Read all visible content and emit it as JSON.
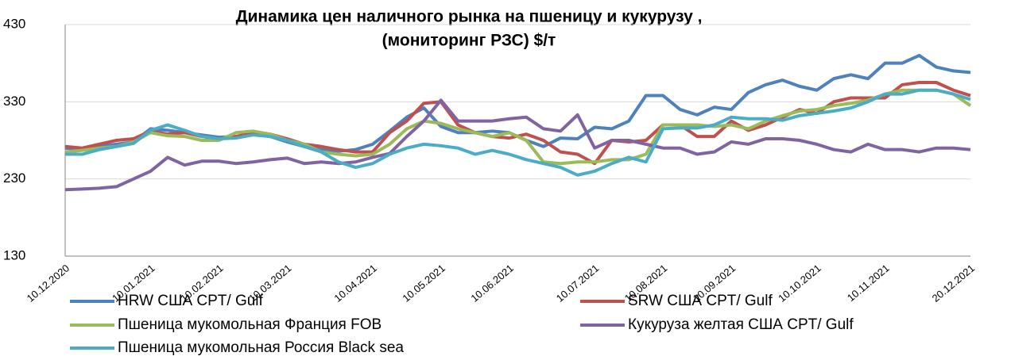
{
  "chart_data": {
    "type": "line",
    "title": [
      "Динамика цен наличного рынка на пшеницу и  кукурузу ,",
      "(мониторинг РЗС) $/т"
    ],
    "categories": [
      "10.12.2020",
      null,
      null,
      null,
      null,
      "10.01.2021",
      null,
      null,
      null,
      "10.02.2021",
      null,
      null,
      null,
      "10.03.2021",
      null,
      null,
      null,
      null,
      "10.04.2021",
      null,
      null,
      null,
      "10.05.2021",
      null,
      null,
      null,
      "10.06.2021",
      null,
      null,
      null,
      null,
      "10.07.2021",
      null,
      null,
      null,
      "10.08.2021",
      null,
      null,
      null,
      "10.09.2021",
      null,
      null,
      null,
      null,
      "10.10.2021",
      null,
      null,
      null,
      "10.11.2021",
      null,
      null,
      null,
      null,
      "20.12.2021"
    ],
    "ylim": [
      130,
      430
    ],
    "yticks": [
      130,
      230,
      330,
      430
    ],
    "grid": true,
    "series": [
      {
        "name": "HRW США CPT/ Gulf",
        "color": "#4f81bd",
        "values": [
          270,
          268,
          272,
          275,
          278,
          295,
          293,
          290,
          287,
          284,
          285,
          288,
          285,
          278,
          272,
          268,
          266,
          268,
          275,
          292,
          310,
          322,
          298,
          290,
          290,
          292,
          290,
          280,
          272,
          283,
          282,
          297,
          295,
          305,
          338,
          338,
          320,
          313,
          323,
          320,
          342,
          352,
          358,
          350,
          345,
          360,
          365,
          360,
          380,
          380,
          390,
          375,
          370,
          368
        ]
      },
      {
        "name": "SRW США CPT/ Gulf",
        "color": "#c0504d",
        "values": [
          272,
          270,
          275,
          280,
          282,
          292,
          288,
          290,
          285,
          282,
          285,
          290,
          288,
          282,
          275,
          272,
          268,
          265,
          265,
          290,
          305,
          328,
          330,
          300,
          290,
          285,
          283,
          288,
          280,
          265,
          262,
          250,
          280,
          278,
          280,
          300,
          300,
          285,
          285,
          305,
          293,
          300,
          310,
          320,
          315,
          330,
          335,
          335,
          335,
          352,
          355,
          355,
          345,
          338
        ]
      },
      {
        "name": "Пшеница мукомольная Франция FOB",
        "color": "#9bbb59",
        "values": [
          265,
          267,
          270,
          272,
          278,
          290,
          286,
          285,
          280,
          280,
          290,
          292,
          288,
          280,
          275,
          265,
          262,
          260,
          262,
          275,
          295,
          305,
          302,
          295,
          290,
          285,
          290,
          280,
          252,
          250,
          252,
          252,
          255,
          255,
          262,
          300,
          300,
          300,
          298,
          300,
          295,
          305,
          312,
          318,
          320,
          325,
          328,
          332,
          340,
          345,
          345,
          345,
          340,
          325
        ]
      },
      {
        "name": "Кукуруза желтая США  CPT/ Gulf",
        "color": "#8064a2",
        "values": [
          216,
          217,
          218,
          220,
          230,
          240,
          258,
          248,
          253,
          253,
          250,
          252,
          255,
          257,
          250,
          252,
          250,
          252,
          258,
          263,
          285,
          305,
          332,
          305,
          305,
          305,
          308,
          310,
          295,
          292,
          313,
          270,
          280,
          280,
          275,
          270,
          270,
          262,
          265,
          278,
          275,
          282,
          282,
          280,
          275,
          268,
          265,
          275,
          268,
          268,
          265,
          270,
          270,
          268
        ]
      },
      {
        "name": "Пшеница мукомольная Россия  Black sea",
        "color": "#4bacc6",
        "values": [
          262,
          262,
          268,
          272,
          276,
          293,
          300,
          293,
          285,
          282,
          283,
          287,
          285,
          280,
          272,
          265,
          252,
          245,
          250,
          262,
          270,
          275,
          273,
          270,
          262,
          267,
          262,
          255,
          250,
          245,
          235,
          240,
          250,
          258,
          252,
          295,
          296,
          296,
          300,
          310,
          308,
          308,
          306,
          312,
          315,
          318,
          322,
          330,
          340,
          340,
          345,
          345,
          340,
          333
        ]
      }
    ]
  }
}
